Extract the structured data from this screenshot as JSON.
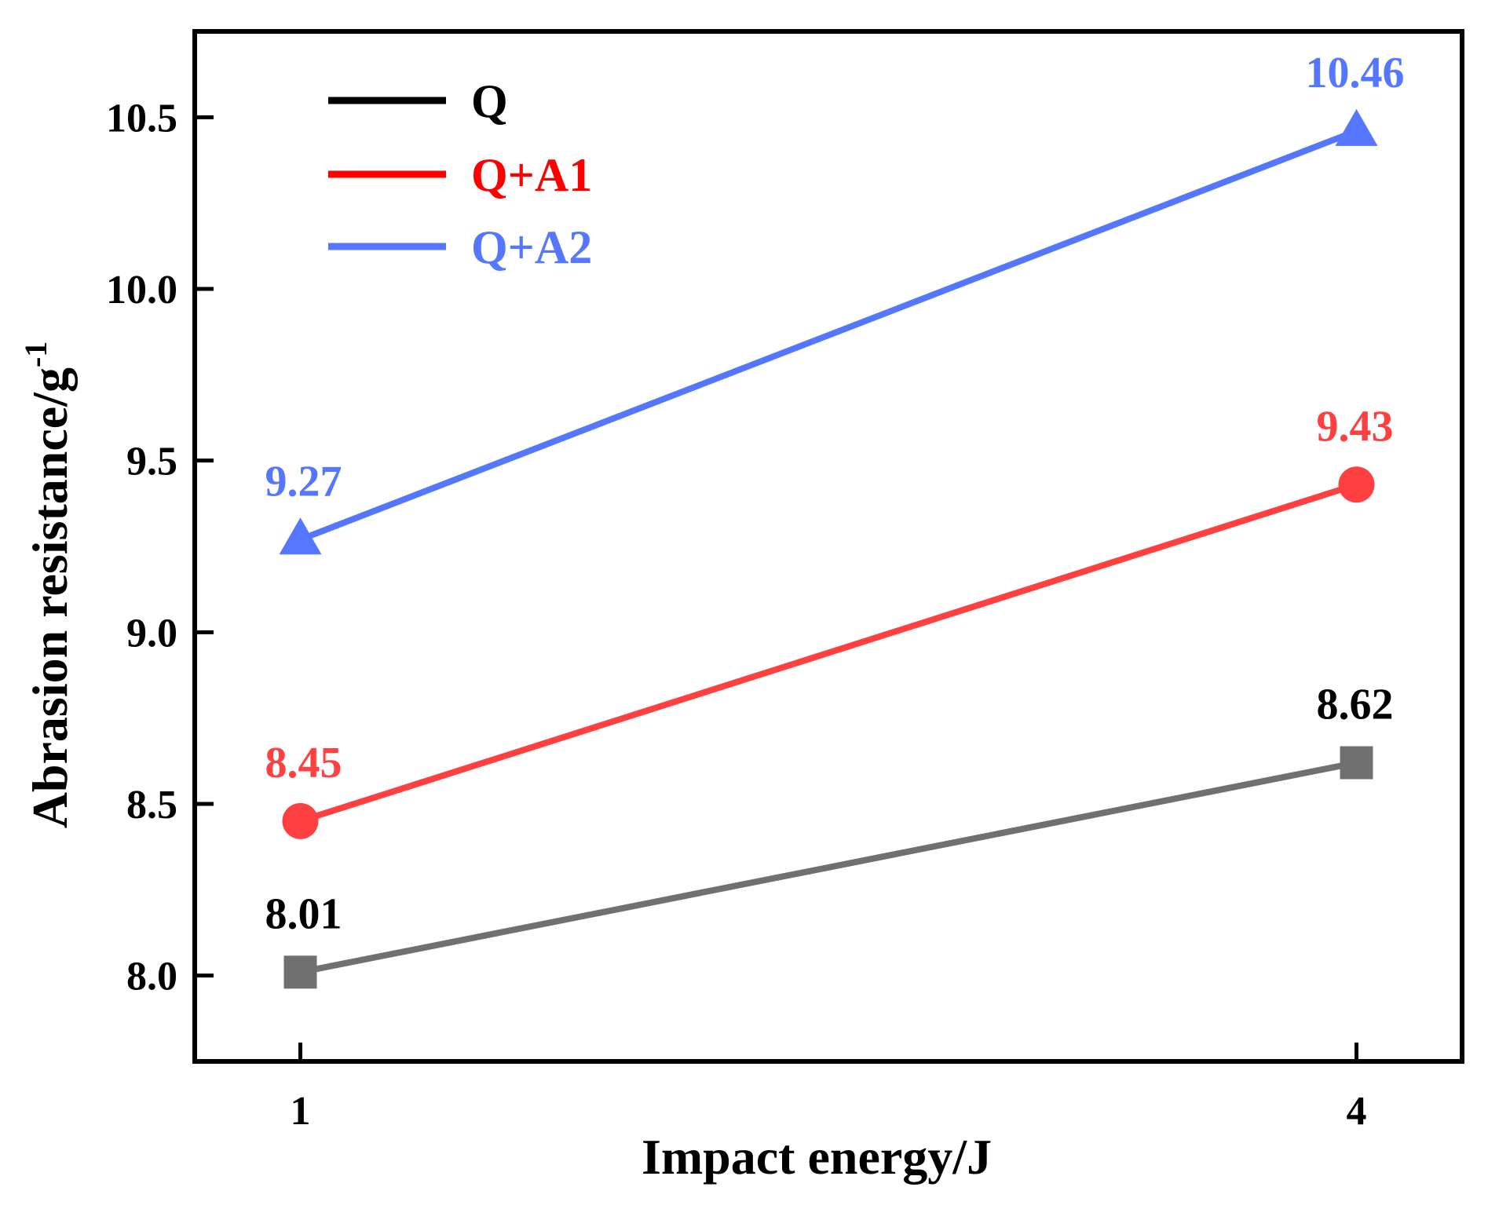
{
  "chart_data": {
    "type": "line",
    "x": [
      1,
      4
    ],
    "xlabel": "Impact energy/J",
    "ylabel": "Abrasion resistance/g",
    "ylabel_superscript": "-1",
    "x_ticks": [
      "1",
      "4"
    ],
    "y_ticks": [
      "8.0",
      "8.5",
      "9.0",
      "9.5",
      "10.0",
      "10.5"
    ],
    "xlim": [
      0.7,
      4.3
    ],
    "ylim": [
      7.75,
      10.75
    ],
    "grid": false,
    "legend_position": "top-left",
    "series": [
      {
        "name": "Q",
        "values": [
          8.01,
          8.62
        ],
        "labels": [
          "8.01",
          "8.62"
        ],
        "marker": "square",
        "line_color": "#707070",
        "legend_line_color": "#000000",
        "label_color": "#000000"
      },
      {
        "name": "Q+A1",
        "values": [
          8.45,
          9.43
        ],
        "labels": [
          "8.45",
          "9.43"
        ],
        "marker": "circle",
        "line_color": "#ff4040",
        "legend_line_color": "#ff0000",
        "label_color": "#ff4040"
      },
      {
        "name": "Q+A2",
        "values": [
          9.27,
          10.46
        ],
        "labels": [
          "9.27",
          "10.46"
        ],
        "marker": "triangle",
        "line_color": "#5577ff",
        "legend_line_color": "#5577ff",
        "label_color": "#5577ff"
      }
    ]
  }
}
